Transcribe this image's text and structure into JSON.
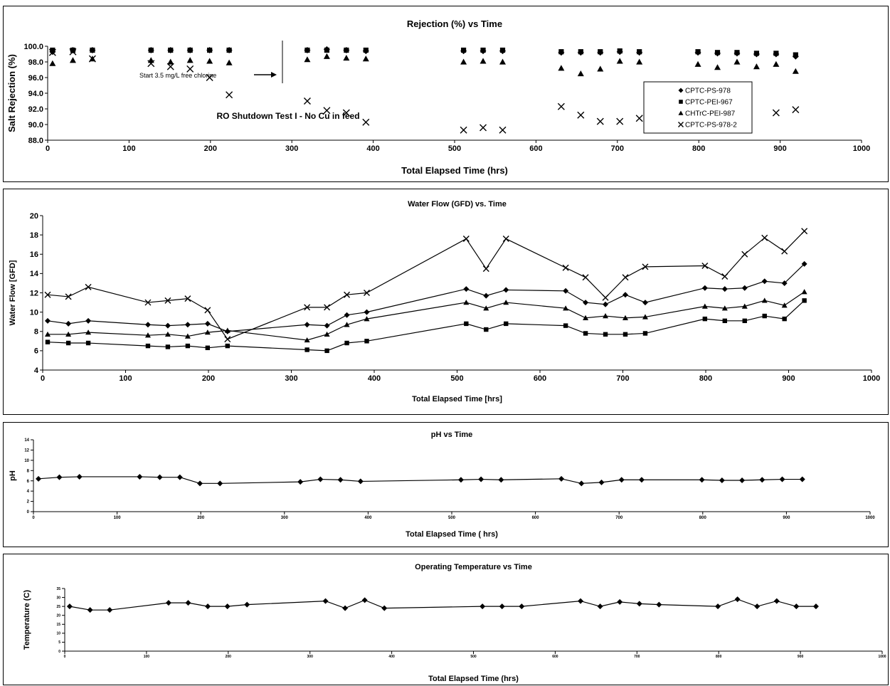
{
  "chart_data": [
    {
      "type": "scatter",
      "title": "Rejection (%) vs Time",
      "xlabel": "Total Elapsed Time (hrs)",
      "ylabel": "Salt Rejection (%)",
      "xlim": [
        0,
        1000
      ],
      "ylim": [
        88,
        100
      ],
      "xticks": [
        "0",
        "100",
        "200",
        "300",
        "400",
        "500",
        "600",
        "700",
        "800",
        "900",
        "1000"
      ],
      "yticks": [
        "88.0",
        "90.0",
        "92.0",
        "94.0",
        "96.0",
        "98.0",
        "100.0"
      ],
      "legend_position": "right",
      "annotations": {
        "chlorine": "Start 3.5 mg/L free chlorine",
        "shutdown": "RO Shutdown Test I  - No Cu in feed"
      },
      "series": [
        {
          "name": "CPTC-PS-978",
          "marker": "diamond",
          "x": [
            6,
            31,
            55,
            127,
            151,
            175,
            199,
            223,
            319,
            343,
            367,
            391,
            511,
            535,
            559,
            631,
            655,
            679,
            703,
            727,
            799,
            823,
            847,
            871,
            895,
            919
          ],
          "y": [
            99.3,
            99.5,
            99.5,
            99.5,
            99.5,
            99.5,
            99.5,
            99.5,
            99.5,
            99.6,
            99.5,
            99.4,
            99.4,
            99.4,
            99.4,
            99.2,
            99.2,
            99.2,
            99.3,
            99.2,
            99.2,
            99.1,
            99.1,
            99.0,
            99.0,
            98.7
          ]
        },
        {
          "name": "CPTC-PEI-967",
          "marker": "square",
          "x": [
            6,
            31,
            55,
            127,
            151,
            175,
            199,
            223,
            319,
            343,
            367,
            391,
            511,
            535,
            559,
            631,
            655,
            679,
            703,
            727,
            799,
            823,
            847,
            871,
            895,
            919
          ],
          "y": [
            99.5,
            99.5,
            99.5,
            99.5,
            99.5,
            99.5,
            99.5,
            99.5,
            99.5,
            99.5,
            99.5,
            99.5,
            99.5,
            99.5,
            99.5,
            99.3,
            99.3,
            99.3,
            99.4,
            99.3,
            99.3,
            99.2,
            99.2,
            99.1,
            99.1,
            98.9
          ]
        },
        {
          "name": "CHTrC-PEI-987",
          "marker": "triangle",
          "x": [
            6,
            31,
            55,
            127,
            151,
            175,
            199,
            223,
            319,
            343,
            367,
            391,
            511,
            535,
            559,
            631,
            655,
            679,
            703,
            727,
            799,
            823,
            847,
            871,
            895,
            919
          ],
          "y": [
            97.8,
            98.2,
            98.4,
            98.2,
            98.0,
            98.2,
            98.1,
            97.9,
            98.3,
            98.7,
            98.5,
            98.4,
            98.0,
            98.1,
            98.0,
            97.2,
            96.5,
            97.1,
            98.1,
            98.0,
            97.7,
            97.3,
            98.0,
            97.4,
            97.7,
            96.8
          ]
        },
        {
          "name": "CPTC-PS-978-2",
          "marker": "x",
          "x": [
            6,
            31,
            55,
            127,
            151,
            175,
            199,
            223,
            319,
            343,
            367,
            391,
            511,
            535,
            559,
            631,
            655,
            679,
            703,
            727,
            799,
            823,
            847,
            871,
            895,
            919
          ],
          "y": [
            99.2,
            99.3,
            98.4,
            97.8,
            97.4,
            97.1,
            96.0,
            93.8,
            93.0,
            91.8,
            91.5,
            90.3,
            89.3,
            89.6,
            89.3,
            92.3,
            91.2,
            90.4,
            90.4,
            90.8,
            null,
            null,
            null,
            null,
            91.5,
            91.9
          ]
        }
      ]
    },
    {
      "type": "line",
      "title": "Water Flow (GFD) vs. Time",
      "xlabel": "Total Elapsed Time [hrs]",
      "ylabel": "Water Flow [GFD]",
      "xlim": [
        0,
        1000
      ],
      "ylim": [
        4,
        20
      ],
      "xticks": [
        "0",
        "100",
        "200",
        "300",
        "400",
        "500",
        "600",
        "700",
        "800",
        "900",
        "1000"
      ],
      "yticks": [
        "4",
        "6",
        "8",
        "10",
        "12",
        "14",
        "16",
        "18",
        "20"
      ],
      "series": [
        {
          "marker": "diamond",
          "x": [
            6,
            31,
            55,
            127,
            151,
            175,
            199,
            223,
            319,
            343,
            367,
            391,
            511,
            535,
            559,
            631,
            655,
            679,
            703,
            727,
            799,
            823,
            847,
            871,
            895,
            919
          ],
          "y": [
            9.1,
            8.8,
            9.1,
            8.7,
            8.6,
            8.7,
            8.8,
            8.0,
            8.7,
            8.6,
            9.7,
            10.0,
            12.4,
            11.7,
            12.3,
            12.2,
            11.0,
            10.8,
            11.8,
            11.0,
            12.5,
            12.4,
            12.5,
            13.2,
            13.0,
            15.0
          ]
        },
        {
          "marker": "square",
          "x": [
            6,
            31,
            55,
            127,
            151,
            175,
            199,
            223,
            319,
            343,
            367,
            391,
            511,
            535,
            559,
            631,
            655,
            679,
            703,
            727,
            799,
            823,
            847,
            871,
            895,
            919
          ],
          "y": [
            6.9,
            6.8,
            6.8,
            6.5,
            6.4,
            6.5,
            6.3,
            6.5,
            6.1,
            6.0,
            6.8,
            7.0,
            8.8,
            8.2,
            8.8,
            8.6,
            7.8,
            7.7,
            7.7,
            7.8,
            9.3,
            9.1,
            9.1,
            9.6,
            9.3,
            11.2
          ]
        },
        {
          "marker": "triangle",
          "x": [
            6,
            31,
            55,
            127,
            151,
            175,
            199,
            223,
            319,
            343,
            367,
            391,
            511,
            535,
            559,
            631,
            655,
            679,
            703,
            727,
            799,
            823,
            847,
            871,
            895,
            919
          ],
          "y": [
            7.7,
            7.7,
            7.9,
            7.6,
            7.7,
            7.5,
            7.9,
            8.1,
            7.1,
            7.7,
            8.7,
            9.3,
            11.0,
            10.4,
            11.0,
            10.4,
            9.4,
            9.6,
            9.4,
            9.5,
            10.6,
            10.4,
            10.6,
            11.2,
            10.7,
            12.1
          ]
        },
        {
          "marker": "x",
          "x": [
            6,
            31,
            55,
            127,
            151,
            175,
            199,
            223,
            319,
            343,
            367,
            391,
            511,
            535,
            559,
            631,
            655,
            679,
            703,
            727,
            799,
            823,
            847,
            871,
            895,
            919
          ],
          "y": [
            11.8,
            11.6,
            12.6,
            11.0,
            11.2,
            11.4,
            10.2,
            7.2,
            10.5,
            10.5,
            11.8,
            12.0,
            17.6,
            14.5,
            17.6,
            14.6,
            13.6,
            11.5,
            13.6,
            14.7,
            14.8,
            13.7,
            16.0,
            17.7,
            16.3,
            18.4
          ]
        }
      ]
    },
    {
      "type": "line",
      "title": "pH vs Time",
      "xlabel": "Total Elapsed Time ( hrs)",
      "ylabel": "pH",
      "xlim": [
        0,
        1000
      ],
      "ylim": [
        0,
        14
      ],
      "xticks": [
        "0",
        "100",
        "200",
        "300",
        "400",
        "500",
        "600",
        "700",
        "800",
        "900",
        "1000"
      ],
      "yticks": [
        "0",
        "2",
        "4",
        "6",
        "8",
        "10",
        "12",
        "14"
      ],
      "series": [
        {
          "marker": "diamond",
          "x": [
            6,
            31,
            55,
            127,
            151,
            175,
            199,
            223,
            319,
            343,
            367,
            391,
            511,
            535,
            559,
            631,
            655,
            679,
            703,
            727,
            799,
            823,
            847,
            871,
            895,
            919
          ],
          "y": [
            6.4,
            6.7,
            6.8,
            6.8,
            6.7,
            6.7,
            5.5,
            5.5,
            5.8,
            6.3,
            6.2,
            5.9,
            6.2,
            6.3,
            6.2,
            6.4,
            5.5,
            5.7,
            6.2,
            6.2,
            6.2,
            6.1,
            6.1,
            6.2,
            6.3,
            6.3
          ]
        }
      ]
    },
    {
      "type": "line",
      "title": "Operating Temperature vs Time",
      "xlabel": "Total Elapsed Time (hrs)",
      "ylabel": "Temperature (C)",
      "xlim": [
        0,
        1000
      ],
      "ylim": [
        0,
        35
      ],
      "xticks": [
        "0",
        "100",
        "200",
        "300",
        "400",
        "500",
        "600",
        "700",
        "800",
        "900",
        "1000"
      ],
      "yticks": [
        "0",
        "5",
        "10",
        "15",
        "20",
        "25",
        "30",
        "35"
      ],
      "series": [
        {
          "marker": "diamond",
          "x": [
            6,
            31,
            55,
            127,
            151,
            175,
            199,
            223,
            319,
            343,
            367,
            391,
            511,
            535,
            559,
            631,
            655,
            679,
            703,
            727,
            799,
            823,
            847,
            871,
            895,
            919
          ],
          "y": [
            25,
            23,
            23,
            27,
            27,
            25,
            25,
            26,
            28,
            24,
            28.5,
            24,
            25,
            25,
            25,
            28,
            25,
            27.5,
            26.5,
            26,
            25,
            29,
            25,
            28,
            25,
            25
          ]
        }
      ]
    }
  ]
}
